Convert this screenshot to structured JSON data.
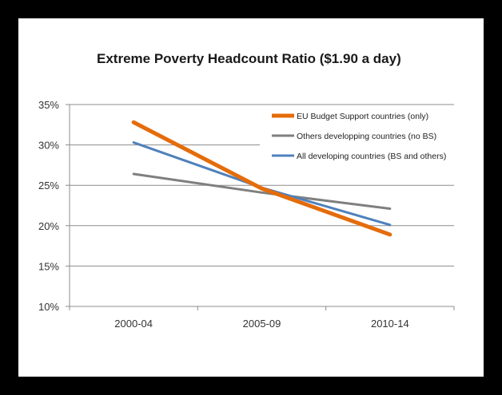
{
  "chart_data": {
    "type": "line",
    "title": "Extreme Poverty Headcount Ratio ($1.90 a day)",
    "xlabel": "",
    "ylabel": "",
    "categories": [
      "2000-04",
      "2005-09",
      "2010-14"
    ],
    "ylim": [
      0.1,
      0.35
    ],
    "yticks": [
      0.1,
      0.15,
      0.2,
      0.25,
      0.3,
      0.35
    ],
    "ytick_labels": [
      "10%",
      "15%",
      "20%",
      "25%",
      "30%",
      "35%"
    ],
    "grid": true,
    "legend_position": "top-right",
    "series": [
      {
        "name": "EU Budget Support countries (only)",
        "color": "#E46C0A",
        "values": [
          0.328,
          0.246,
          0.189
        ]
      },
      {
        "name": "Others developping countries (no BS)",
        "color": "#7F7F7F",
        "values": [
          0.264,
          0.241,
          0.221
        ]
      },
      {
        "name": "All developing countries (BS and others)",
        "color": "#4F81BD",
        "values": [
          0.303,
          0.247,
          0.201
        ]
      }
    ]
  }
}
